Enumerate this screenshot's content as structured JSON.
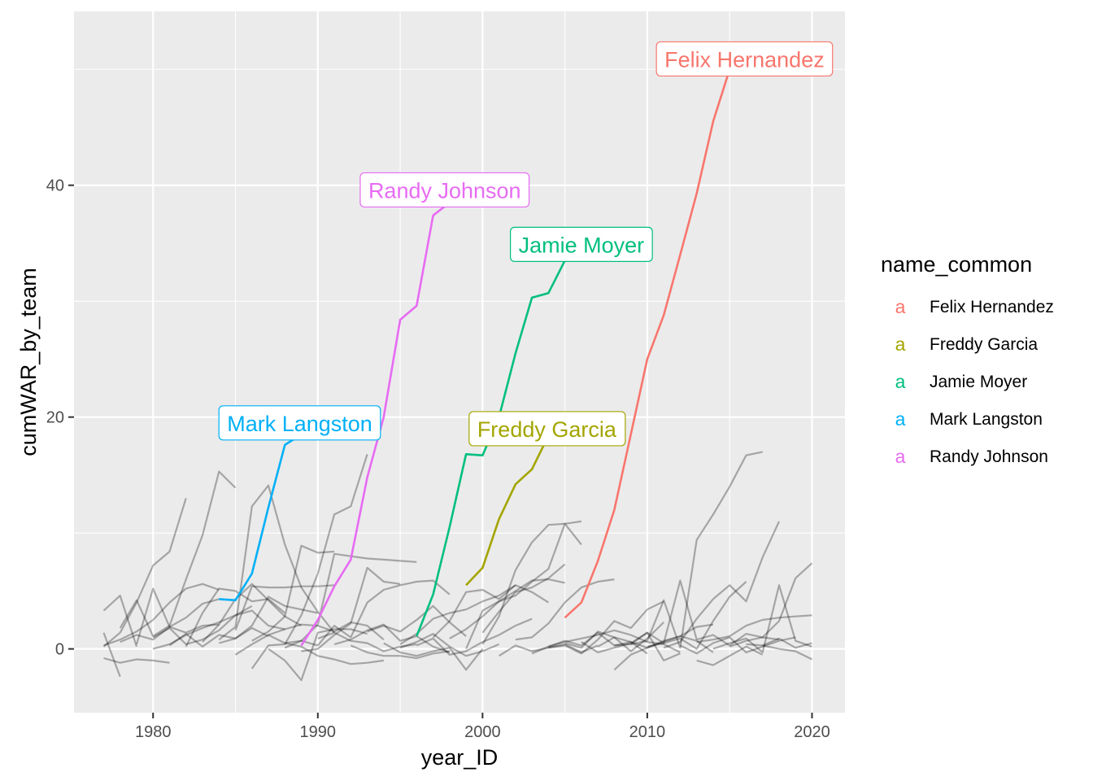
{
  "chart_data": {
    "type": "line",
    "xlabel": "year_ID",
    "ylabel": "cumWAR_by_team",
    "xlim": [
      1975.2,
      2022.0
    ],
    "ylim": [
      -5.5,
      55.0
    ],
    "x_ticks": [
      1980,
      1990,
      2000,
      2010,
      2020
    ],
    "y_ticks": [
      0,
      20,
      40
    ],
    "grid": true,
    "legend": {
      "title": "name_common",
      "position": "right",
      "key_glyph": "a"
    },
    "series": [
      {
        "name": "Felix Hernandez",
        "color": "#F8766D",
        "x": [
          2005,
          2006,
          2007,
          2008,
          2009,
          2010,
          2011,
          2012,
          2013,
          2014,
          2015
        ],
        "y": [
          2.7,
          4.0,
          7.6,
          12.0,
          18.5,
          25.0,
          28.8,
          34.0,
          39.3,
          45.5,
          50.0
        ]
      },
      {
        "name": "Freddy Garcia",
        "color": "#A3A500",
        "x": [
          1999,
          2000,
          2001,
          2002,
          2003,
          2004
        ],
        "y": [
          5.5,
          7.0,
          11.2,
          14.2,
          15.5,
          18.4
        ]
      },
      {
        "name": "Jamie Moyer",
        "color": "#00BF7D",
        "x": [
          1996,
          1997,
          1998,
          1999,
          2000,
          2001,
          2002,
          2003,
          2004,
          2005
        ],
        "y": [
          1.1,
          4.7,
          10.5,
          16.8,
          16.7,
          20.0,
          25.5,
          30.3,
          30.7,
          33.5
        ]
      },
      {
        "name": "Mark Langston",
        "color": "#00B0F6",
        "x": [
          1984,
          1985,
          1986,
          1987,
          1988,
          1989
        ],
        "y": [
          4.3,
          4.2,
          6.5,
          12.2,
          17.6,
          18.5
        ]
      },
      {
        "name": "Randy Johnson",
        "color": "#E76BF3",
        "x": [
          1989,
          1990,
          1991,
          1992,
          1993,
          1994,
          1995,
          1996,
          1997,
          1998
        ],
        "y": [
          0.3,
          2.5,
          5.4,
          7.7,
          14.8,
          20.0,
          28.4,
          29.6,
          37.4,
          38.5
        ]
      }
    ],
    "callouts": [
      {
        "text": "Felix Hernandez",
        "series": "Felix Hernandez",
        "x": 2015.9,
        "y": 50.9
      },
      {
        "text": "Randy Johnson",
        "series": "Randy Johnson",
        "x": 1997.7,
        "y": 39.6
      },
      {
        "text": "Jamie Moyer",
        "series": "Jamie Moyer",
        "x": 2006.0,
        "y": 34.9
      },
      {
        "text": "Mark Langston",
        "series": "Mark Langston",
        "x": 1988.9,
        "y": 19.5
      },
      {
        "text": "Freddy Garcia",
        "series": "Freddy Garcia",
        "x": 2003.9,
        "y": 19.0
      }
    ],
    "other_players_color": "#000000",
    "other_players_opacity": 0.3,
    "other_players": [
      {
        "x": [
          1977,
          1978,
          1979,
          1980,
          1981,
          1982
        ],
        "y": [
          0.2,
          1.4,
          4.0,
          7.2,
          8.4,
          13.0
        ]
      },
      {
        "x": [
          1977,
          1978,
          1979
        ],
        "y": [
          3.3,
          4.6,
          0.2
        ]
      },
      {
        "x": [
          1977,
          1978
        ],
        "y": [
          1.4,
          -2.4
        ]
      },
      {
        "x": [
          1977,
          1978,
          1979,
          1980,
          1981,
          1982,
          1983,
          1984
        ],
        "y": [
          0.3,
          0.8,
          1.5,
          2.5,
          4.0,
          5.2,
          5.6,
          5.1
        ]
      },
      {
        "x": [
          1977,
          1978,
          1979,
          1980,
          1981
        ],
        "y": [
          -0.8,
          -1.2,
          -0.9,
          -1.0,
          -1.2
        ]
      },
      {
        "x": [
          1978,
          1979,
          1980,
          1981,
          1982,
          1983,
          1984
        ],
        "y": [
          0.6,
          1.2,
          0.8,
          1.9,
          2.7,
          3.9,
          4.3
        ]
      },
      {
        "x": [
          1978,
          1979,
          1980,
          1981,
          1982,
          1983,
          1984,
          1985
        ],
        "y": [
          1.8,
          4.2,
          1.1,
          2.0,
          6.0,
          9.8,
          15.3,
          13.9
        ]
      },
      {
        "x": [
          1979,
          1980,
          1981,
          1982,
          1983,
          1984
        ],
        "y": [
          0.4,
          5.2,
          1.9,
          1.4,
          2.0,
          2.1
        ]
      },
      {
        "x": [
          1980,
          1981,
          1982,
          1983,
          1984,
          1985,
          1986
        ],
        "y": [
          1.0,
          1.8,
          0.4,
          0.8,
          1.6,
          2.9,
          3.7
        ]
      },
      {
        "x": [
          1981,
          1982,
          1983,
          1984,
          1985,
          1986,
          1987
        ],
        "y": [
          0.3,
          1.3,
          0.2,
          1.2,
          0.9,
          1.8,
          1.1
        ]
      },
      {
        "x": [
          1982,
          1983,
          1984,
          1985,
          1986,
          1987,
          1988
        ],
        "y": [
          0.2,
          3.1,
          5.2,
          5.0,
          4.1,
          4.3,
          3.1
        ]
      },
      {
        "x": [
          1983,
          1984,
          1985,
          1986,
          1987,
          1988,
          1989
        ],
        "y": [
          0.6,
          2.1,
          4.3,
          5.6,
          4.2,
          2.8,
          2.0
        ]
      },
      {
        "x": [
          1984,
          1985,
          1986,
          1987,
          1988,
          1989,
          1990
        ],
        "y": [
          0.5,
          0.9,
          2.0,
          4.5,
          3.7,
          3.4,
          3.1
        ]
      },
      {
        "x": [
          1984,
          1985,
          1986,
          1987,
          1988,
          1989,
          1990,
          1991
        ],
        "y": [
          0.8,
          1.9,
          12.3,
          14.1,
          9.0,
          5.3,
          3.2,
          1.4
        ]
      },
      {
        "x": [
          1985,
          1986,
          1987,
          1988,
          1989,
          1990
        ],
        "y": [
          -0.5,
          0.4,
          1.2,
          0.5,
          0.7,
          0.3
        ]
      },
      {
        "x": [
          1985,
          1986,
          1987,
          1988,
          1989,
          1990,
          1991
        ],
        "y": [
          1.6,
          5.4,
          5.3,
          5.3,
          5.4,
          5.4,
          5.5
        ]
      },
      {
        "x": [
          1986,
          1987,
          1988,
          1989,
          1990,
          1991,
          1992,
          1993
        ],
        "y": [
          -1.7,
          0.3,
          0.4,
          2.9,
          6.5,
          11.6,
          12.3,
          16.8
        ]
      },
      {
        "x": [
          1986,
          1987,
          1988,
          1989,
          1990,
          1991
        ],
        "y": [
          0.7,
          1.5,
          2.8,
          8.9,
          8.3,
          8.4
        ]
      },
      {
        "x": [
          1987,
          1988,
          1989,
          1990,
          1991,
          1992,
          1993
        ],
        "y": [
          0.0,
          -1.0,
          -2.7,
          1.4,
          1.7,
          1.7,
          1.3
        ]
      },
      {
        "x": [
          1987,
          1988,
          1989,
          1990,
          1991,
          1992,
          1993,
          1994
        ],
        "y": [
          1.2,
          1.7,
          2.1,
          2.0,
          1.5,
          2.3,
          2.0,
          0.8
        ]
      },
      {
        "x": [
          1988,
          1989,
          1990,
          1991,
          1992,
          1993,
          1994,
          1995,
          1996
        ],
        "y": [
          0.1,
          0.7,
          2.1,
          8.2,
          8.0,
          7.8,
          7.7,
          7.6,
          7.5
        ]
      },
      {
        "x": [
          1988,
          1989,
          1990,
          1991,
          1992,
          1993,
          1994
        ],
        "y": [
          0.5,
          0.2,
          -0.6,
          -0.9,
          -1.3,
          -1.2,
          -1.0
        ]
      },
      {
        "x": [
          1989,
          1990,
          1991,
          1992,
          1993,
          1994,
          1995
        ],
        "y": [
          -0.2,
          0.0,
          1.2,
          2.2,
          7.0,
          5.8,
          5.6
        ]
      },
      {
        "x": [
          1990,
          1991,
          1992,
          1993,
          1994,
          1995,
          1996,
          1997,
          1998
        ],
        "y": [
          0.3,
          2.0,
          1.0,
          4.0,
          5.1,
          5.5,
          5.8,
          5.9,
          4.7
        ]
      },
      {
        "x": [
          1991,
          1992,
          1993,
          1994,
          1995,
          1996,
          1997,
          1998
        ],
        "y": [
          0.4,
          0.8,
          1.6,
          2.1,
          0.7,
          1.1,
          0.2,
          -0.3
        ]
      },
      {
        "x": [
          1992,
          1993,
          1994,
          1995,
          1996,
          1997,
          1998
        ],
        "y": [
          0.3,
          -0.3,
          -0.6,
          -0.6,
          -0.8,
          -0.4,
          -0.2
        ]
      },
      {
        "x": [
          1993,
          1994,
          1995,
          1996,
          1997,
          1998,
          1999
        ],
        "y": [
          1.5,
          2.0,
          1.5,
          2.5,
          3.7,
          2.3,
          1.1
        ]
      },
      {
        "x": [
          1994,
          1995,
          1996,
          1997,
          1998,
          1999,
          2000
        ],
        "y": [
          0.5,
          -0.3,
          -0.6,
          -0.2,
          0.1,
          -1.8,
          0.0
        ]
      },
      {
        "x": [
          1995,
          1996,
          1997,
          1998,
          1999,
          2000,
          2001
        ],
        "y": [
          0.1,
          0.6,
          1.3,
          0.2,
          -0.6,
          -0.2,
          0.4
        ]
      },
      {
        "x": [
          1996,
          1997,
          1998,
          1999,
          2000,
          2001,
          2002,
          2003
        ],
        "y": [
          0.3,
          0.9,
          -0.5,
          -0.2,
          0.6,
          1.2,
          2.0,
          2.6
        ]
      },
      {
        "x": [
          1997,
          1998,
          1999,
          2000,
          2001,
          2002,
          2003,
          2004
        ],
        "y": [
          1.0,
          2.4,
          4.9,
          5.1,
          4.3,
          5.5,
          4.9,
          4.0
        ]
      },
      {
        "x": [
          1998,
          1999,
          2000,
          2001,
          2002,
          2003,
          2004,
          2005
        ],
        "y": [
          0.9,
          1.7,
          2.8,
          4.1,
          5.0,
          5.9,
          6.0,
          5.7
        ]
      },
      {
        "x": [
          1999,
          2000,
          2001,
          2002,
          2003,
          2004,
          2005,
          2006
        ],
        "y": [
          0.0,
          3.3,
          4.1,
          4.6,
          5.8,
          6.9,
          10.8,
          9.0
        ]
      },
      {
        "x": [
          2000,
          2001,
          2002,
          2003,
          2004,
          2005,
          2006
        ],
        "y": [
          0.4,
          2.8,
          6.8,
          9.2,
          10.7,
          10.8,
          11.0
        ]
      },
      {
        "x": [
          2000,
          2001,
          2002,
          2003,
          2004,
          2005
        ],
        "y": [
          1.4,
          3.2,
          4.9,
          5.3,
          6.1,
          7.3
        ]
      },
      {
        "x": [
          2001,
          2002,
          2003,
          2004,
          2005,
          2006,
          2007
        ],
        "y": [
          -0.6,
          0.3,
          -0.2,
          0.1,
          0.4,
          -0.3,
          0.3
        ]
      },
      {
        "x": [
          2002,
          2003,
          2004,
          2005,
          2006,
          2007,
          2008
        ],
        "y": [
          0.8,
          1.0,
          2.2,
          4.0,
          5.3,
          5.8,
          6.0
        ]
      },
      {
        "x": [
          2003,
          2004,
          2005,
          2006,
          2007,
          2008,
          2009,
          2010
        ],
        "y": [
          -0.4,
          0.2,
          0.7,
          0.3,
          1.4,
          0.3,
          0.6,
          -0.4
        ]
      },
      {
        "x": [
          2004,
          2005,
          2006,
          2007,
          2008,
          2009,
          2010,
          2011
        ],
        "y": [
          0.1,
          0.3,
          -0.4,
          0.8,
          2.4,
          1.8,
          3.4,
          4.1
        ]
      },
      {
        "x": [
          2005,
          2006,
          2007,
          2008,
          2009,
          2010,
          2011
        ],
        "y": [
          0.5,
          0.1,
          1.5,
          1.0,
          -0.2,
          0.9,
          2.3
        ]
      },
      {
        "x": [
          2006,
          2007,
          2008,
          2009,
          2010,
          2011,
          2012
        ],
        "y": [
          0.6,
          -0.3,
          0.1,
          0.5,
          1.4,
          -1.0,
          -0.4
        ]
      },
      {
        "x": [
          2007,
          2008,
          2009,
          2010,
          2011,
          2012,
          2013,
          2014
        ],
        "y": [
          0.2,
          1.0,
          0.6,
          0.1,
          0.7,
          1.1,
          1.9,
          2.1
        ]
      },
      {
        "x": [
          2008,
          2009,
          2010,
          2011,
          2012,
          2013,
          2014,
          2015,
          2016,
          2017
        ],
        "y": [
          0.3,
          0.4,
          0.7,
          4.2,
          0.1,
          9.4,
          11.6,
          14.0,
          16.7,
          17.0
        ]
      },
      {
        "x": [
          2009,
          2010,
          2011,
          2012,
          2013,
          2014,
          2015,
          2016
        ],
        "y": [
          0.4,
          1.4,
          0.5,
          0.9,
          0.0,
          2.4,
          4.5,
          5.8
        ]
      },
      {
        "x": [
          2010,
          2011,
          2012,
          2013,
          2014,
          2015,
          2016,
          2017,
          2018
        ],
        "y": [
          0.2,
          0.5,
          5.9,
          0.8,
          1.2,
          0.3,
          1.3,
          1.0,
          0.8
        ]
      },
      {
        "x": [
          2011,
          2012,
          2013,
          2014,
          2015,
          2016,
          2017,
          2018
        ],
        "y": [
          0.1,
          0.6,
          2.6,
          4.3,
          5.5,
          4.1,
          7.9,
          11.0
        ]
      },
      {
        "x": [
          2012,
          2013,
          2014,
          2015,
          2016,
          2017,
          2018,
          2019
        ],
        "y": [
          0.3,
          -0.4,
          0.5,
          1.0,
          -0.3,
          0.2,
          0.7,
          1.0
        ]
      },
      {
        "x": [
          2013,
          2014,
          2015,
          2016,
          2017,
          2018,
          2019,
          2020
        ],
        "y": [
          0.6,
          0.8,
          1.1,
          2.0,
          2.5,
          2.7,
          2.8,
          2.9
        ]
      },
      {
        "x": [
          2014,
          2015,
          2016,
          2017,
          2018,
          2019,
          2020
        ],
        "y": [
          0.0,
          0.5,
          0.9,
          -0.3,
          5.5,
          0.7,
          0.2
        ]
      },
      {
        "x": [
          2015,
          2016,
          2017,
          2018,
          2019,
          2020
        ],
        "y": [
          0.2,
          0.7,
          1.0,
          2.4,
          6.1,
          7.4
        ]
      },
      {
        "x": [
          2016,
          2017,
          2018,
          2019,
          2020
        ],
        "y": [
          0.4,
          0.3,
          0.0,
          -0.2,
          -0.9
        ]
      },
      {
        "x": [
          2017,
          2018,
          2019,
          2020
        ],
        "y": [
          0.3,
          0.9,
          0.1,
          0.5
        ]
      },
      {
        "x": [
          1990,
          1991,
          1992,
          1993,
          1994,
          1995,
          1996
        ],
        "y": [
          0.9,
          1.4,
          0.7,
          0.5,
          -0.2,
          0.2,
          0.4
        ]
      },
      {
        "x": [
          1995,
          1996,
          1997,
          1998,
          1999,
          2000,
          2001,
          2002
        ],
        "y": [
          0.4,
          1.3,
          2.6,
          3.1,
          3.4,
          4.1,
          4.6,
          5.5
        ]
      },
      {
        "x": [
          1980,
          1981,
          1982,
          1983,
          1984,
          1985,
          1986,
          1987,
          1988
        ],
        "y": [
          0.0,
          0.4,
          1.2,
          1.8,
          2.3,
          2.9,
          3.3,
          2.0,
          1.7
        ]
      },
      {
        "x": [
          2004,
          2005,
          2006,
          2007,
          2008,
          2009,
          2010,
          2011,
          2012
        ],
        "y": [
          0.2,
          0.6,
          0.9,
          1.2,
          1.6,
          1.2,
          0.6,
          0.4,
          -0.3
        ]
      },
      {
        "x": [
          2008,
          2009,
          2010,
          2011,
          2012,
          2013,
          2014
        ],
        "y": [
          -1.8,
          -0.5,
          0.1,
          0.6,
          1.1,
          0.7,
          -0.3
        ]
      },
      {
        "x": [
          2013,
          2014,
          2015,
          2016,
          2017
        ],
        "y": [
          -1.0,
          -1.4,
          -0.6,
          0.2,
          -0.5
        ]
      }
    ]
  }
}
